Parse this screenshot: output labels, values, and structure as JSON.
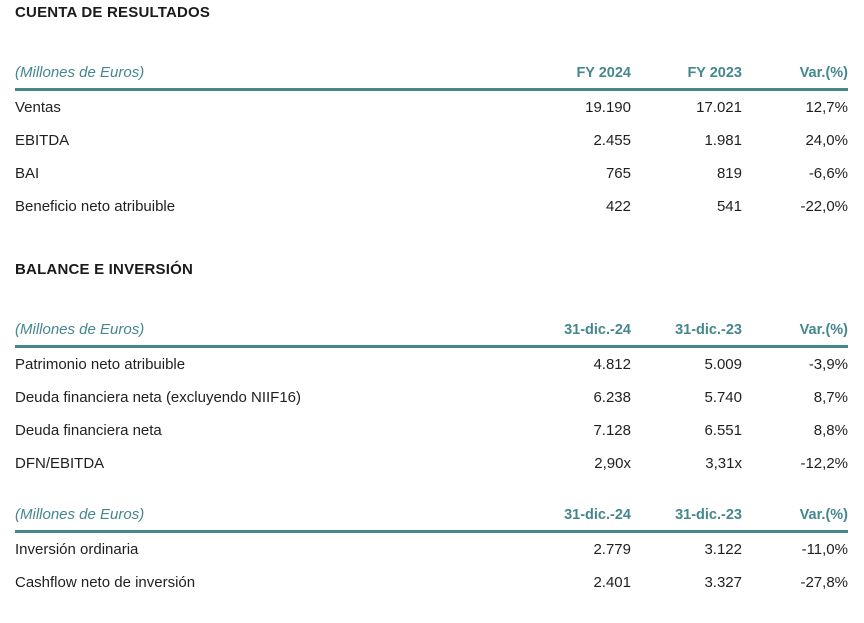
{
  "accent_color": "#44878d",
  "text_color": "#1f1f1f",
  "sections": [
    {
      "title": "CUENTA DE RESULTADOS",
      "tables": [
        {
          "unit_label": "(Millones de Euros)",
          "columns": [
            "FY 2024",
            "FY 2023",
            "Var.(%)"
          ],
          "rows": [
            {
              "label": "Ventas",
              "values": [
                "19.190",
                "17.021",
                "12,7%"
              ]
            },
            {
              "label": "EBITDA",
              "values": [
                "2.455",
                "1.981",
                "24,0%"
              ]
            },
            {
              "label": "BAI",
              "values": [
                "765",
                "819",
                "-6,6%"
              ]
            },
            {
              "label": "Beneficio neto atribuible",
              "values": [
                "422",
                "541",
                "-22,0%"
              ]
            }
          ]
        }
      ]
    },
    {
      "title": "BALANCE E INVERSIÓN",
      "tables": [
        {
          "unit_label": "(Millones de Euros)",
          "columns": [
            "31-dic.-24",
            "31-dic.-23",
            "Var.(%)"
          ],
          "rows": [
            {
              "label": "Patrimonio neto atribuible",
              "values": [
                "4.812",
                "5.009",
                "-3,9%"
              ]
            },
            {
              "label": "Deuda financiera neta (excluyendo NIIF16)",
              "values": [
                "6.238",
                "5.740",
                "8,7%"
              ]
            },
            {
              "label": "Deuda financiera neta",
              "values": [
                "7.128",
                "6.551",
                "8,8%"
              ]
            },
            {
              "label": "DFN/EBITDA",
              "values": [
                "2,90x",
                "3,31x",
                "-12,2%"
              ]
            }
          ]
        },
        {
          "unit_label": "(Millones de Euros)",
          "columns": [
            "31-dic.-24",
            "31-dic.-23",
            "Var.(%)"
          ],
          "rows": [
            {
              "label": "Inversión ordinaria",
              "values": [
                "2.779",
                "3.122",
                "-11,0%"
              ]
            },
            {
              "label": "Cashflow neto de inversión",
              "values": [
                "2.401",
                "3.327",
                "-27,8%"
              ]
            }
          ]
        }
      ]
    }
  ]
}
